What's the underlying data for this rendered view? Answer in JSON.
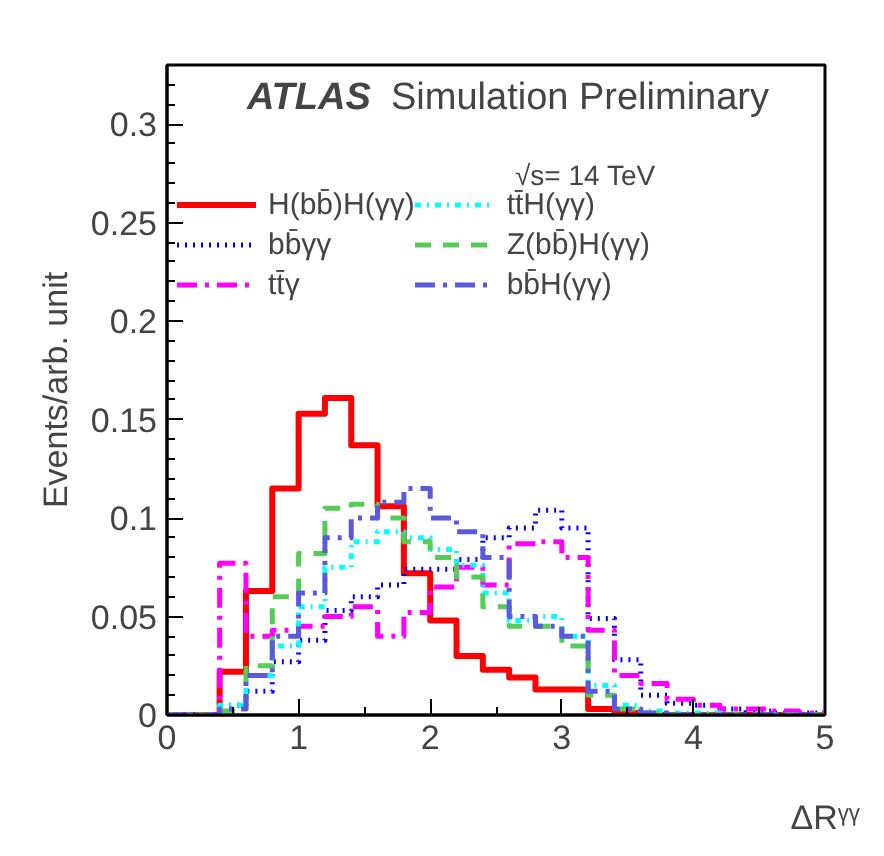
{
  "chart_data": {
    "type": "histogram",
    "xlabel": "ΔRᵞᵞ",
    "ylabel": "Events/arb. unit",
    "annotations": [
      "ATLAS Simulation Preliminary",
      "√s= 14 TeV"
    ],
    "bins": [
      0,
      0.2,
      0.4,
      0.6,
      0.8,
      1.0,
      1.2,
      1.4,
      1.6,
      1.8,
      2.0,
      2.2,
      2.4,
      2.6,
      2.8,
      3.0,
      3.2,
      3.4,
      3.6,
      3.8,
      4.0,
      4.2,
      4.4,
      4.6,
      4.8,
      5.0
    ],
    "series": [
      {
        "name": "H(bb̄)H(γγ)",
        "color": "#ff0000",
        "line_style": "solid",
        "values": [
          0,
          0,
          0.022,
          0.063,
          0.115,
          0.153,
          0.161,
          0.137,
          0.106,
          0.072,
          0.048,
          0.03,
          0.023,
          0.019,
          0.013,
          0.013,
          0.003,
          0.001,
          0,
          0,
          0,
          0,
          0,
          0,
          0
        ]
      },
      {
        "name": "bb̄γγ",
        "color": "#0000ff",
        "line_style": "dotted",
        "values": [
          0,
          0,
          0.005,
          0.012,
          0.027,
          0.038,
          0.053,
          0.06,
          0.066,
          0.074,
          0.074,
          0.079,
          0.09,
          0.095,
          0.104,
          0.095,
          0.049,
          0.028,
          0.01,
          0.006,
          0.005,
          0.003,
          0.002,
          0.001,
          0.001
        ]
      },
      {
        "name": "tt̄γ",
        "color": "#ff00ff",
        "line_style": "dashdot",
        "values": [
          0,
          0,
          0.077,
          0.04,
          0.043,
          0.045,
          0.05,
          0.055,
          0.04,
          0.052,
          0.065,
          0.075,
          0.066,
          0.087,
          0.088,
          0.08,
          0.043,
          0.02,
          0.016,
          0.008,
          0.005,
          0.003,
          0.003,
          0.002,
          0.001
        ]
      },
      {
        "name": "tt̄H(γγ)",
        "color": "#00ffff",
        "line_style": "dotdash",
        "values": [
          0,
          0,
          0.005,
          0.02,
          0.035,
          0.055,
          0.075,
          0.088,
          0.093,
          0.09,
          0.084,
          0.076,
          0.062,
          0.048,
          0.05,
          0.04,
          0.015,
          0.005,
          0.002,
          0.001,
          0.001,
          0,
          0,
          0,
          0
        ]
      },
      {
        "name": "Z(bb̄)H(γγ)",
        "color": "#55cc55",
        "line_style": "dashed",
        "values": [
          0,
          0,
          0.002,
          0.025,
          0.06,
          0.082,
          0.105,
          0.107,
          0.1,
          0.088,
          0.08,
          0.07,
          0.055,
          0.045,
          0.045,
          0.035,
          0.01,
          0.003,
          0.001,
          0,
          0,
          0,
          0,
          0,
          0
        ]
      },
      {
        "name": "bb̄H(γγ)",
        "color": "#5a5adc",
        "line_style": "dashdot",
        "values": [
          0,
          0,
          0.003,
          0.02,
          0.04,
          0.062,
          0.09,
          0.1,
          0.108,
          0.115,
          0.1,
          0.093,
          0.08,
          0.05,
          0.045,
          0.04,
          0.012,
          0.003,
          0.001,
          0,
          0,
          0,
          0,
          0,
          0
        ]
      }
    ],
    "xlim": [
      0,
      5
    ],
    "ylim": [
      0,
      0.33
    ],
    "xticks": [
      0,
      1,
      2,
      3,
      4,
      5
    ],
    "yticks": [
      0,
      0.05,
      0.1,
      0.15,
      0.2,
      0.25,
      0.3
    ],
    "grid": false,
    "legend": "top"
  }
}
